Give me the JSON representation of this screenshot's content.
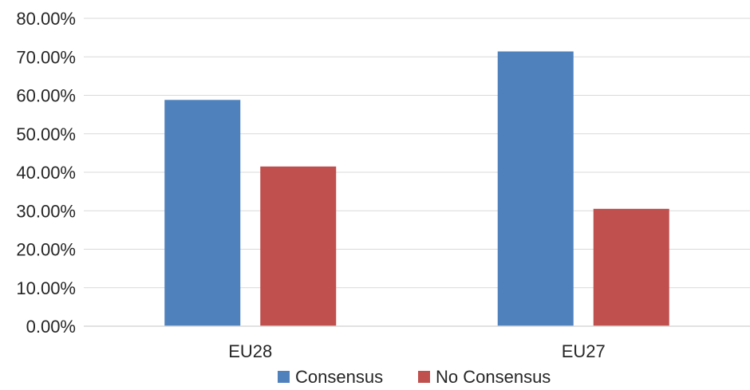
{
  "chart_data": {
    "type": "bar",
    "title": "",
    "xlabel": "",
    "ylabel": "",
    "categories": [
      "EU28",
      "EU27"
    ],
    "series": [
      {
        "name": "Consensus",
        "values": [
          58.8,
          71.4
        ],
        "color": "#4f81bd"
      },
      {
        "name": "No Consensus",
        "values": [
          41.5,
          30.5
        ],
        "color": "#c0504d"
      }
    ],
    "ylim": [
      0,
      80
    ],
    "y_ticks": [
      "0.00%",
      "10.00%",
      "20.00%",
      "30.00%",
      "40.00%",
      "50.00%",
      "60.00%",
      "70.00%",
      "80.00%"
    ],
    "grid": true,
    "legend_position": "bottom"
  }
}
